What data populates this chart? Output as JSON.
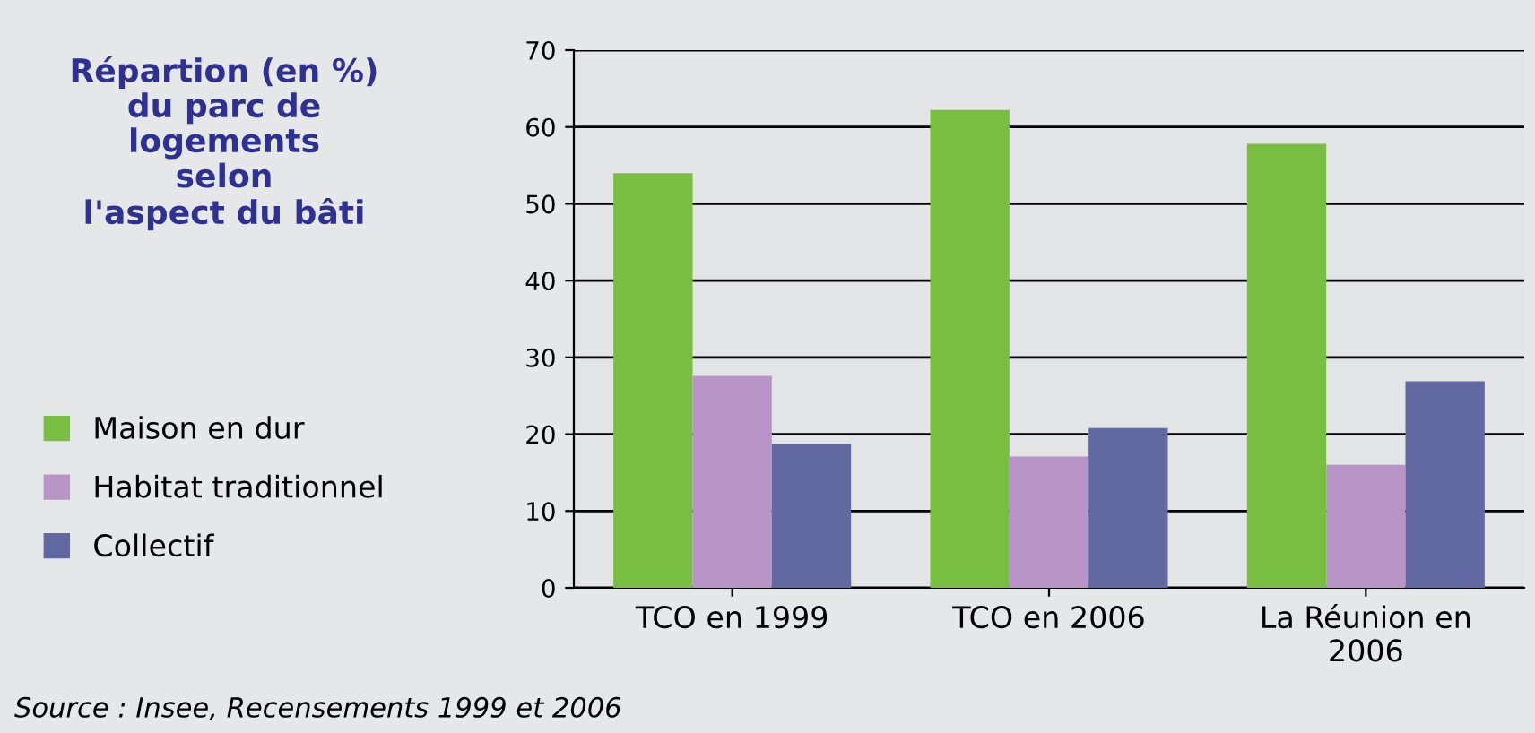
{
  "chart_data": {
    "type": "bar",
    "title": "Répartion (en %)\ndu parc de\nlogements\nselon\nl'aspect du bâti",
    "categories": [
      "TCO en 1999",
      "TCO en 2006",
      "La Réunion en\n2006"
    ],
    "series": [
      {
        "name": "Maison en dur",
        "color": "#78bf41",
        "values": [
          54.0,
          62.2,
          57.8
        ]
      },
      {
        "name": "Habitat traditionnel",
        "color": "#b994c6",
        "values": [
          27.6,
          17.1,
          16.0
        ]
      },
      {
        "name": "Collectif",
        "color": "#6268a2",
        "values": [
          18.7,
          20.8,
          26.9
        ]
      }
    ],
    "ylim": [
      0,
      70
    ],
    "yticks": [
      0,
      10,
      20,
      30,
      40,
      50,
      60,
      70
    ],
    "grid": "y",
    "legend": "left",
    "annotations": [
      "Source : Insee, Recensements 1999 et 2006"
    ]
  }
}
